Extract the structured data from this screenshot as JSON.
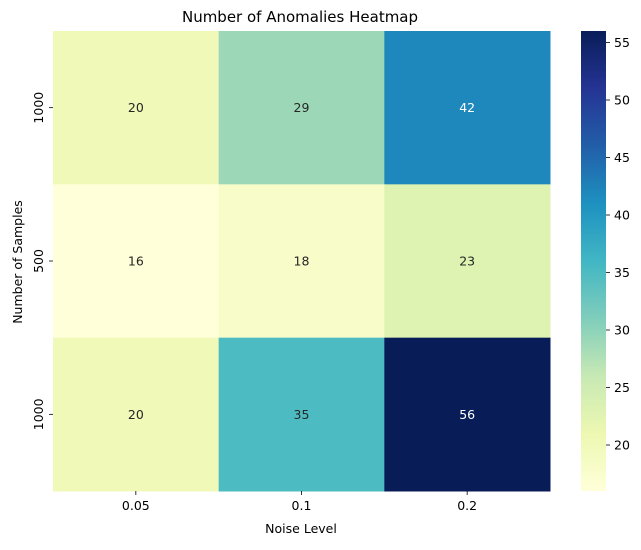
{
  "chart_data": {
    "type": "heatmap",
    "title": "Number of Anomalies Heatmap",
    "xlabel": "Noise Level",
    "ylabel": "Number of Samples",
    "x_categories": [
      "0.05",
      "0.1",
      "0.2"
    ],
    "y_categories": [
      "1000",
      "500",
      "1000"
    ],
    "values": [
      [
        20,
        29,
        42
      ],
      [
        16,
        18,
        23
      ],
      [
        20,
        35,
        56
      ]
    ],
    "colorscale": "YlGnBu",
    "vmin": 16,
    "vmax": 56,
    "colorbar_ticks": [
      20,
      25,
      30,
      35,
      40,
      45,
      50,
      55
    ],
    "colors": {
      "text_dark": "#262626",
      "text_light": "#ffffff",
      "axis": "#000000"
    }
  }
}
